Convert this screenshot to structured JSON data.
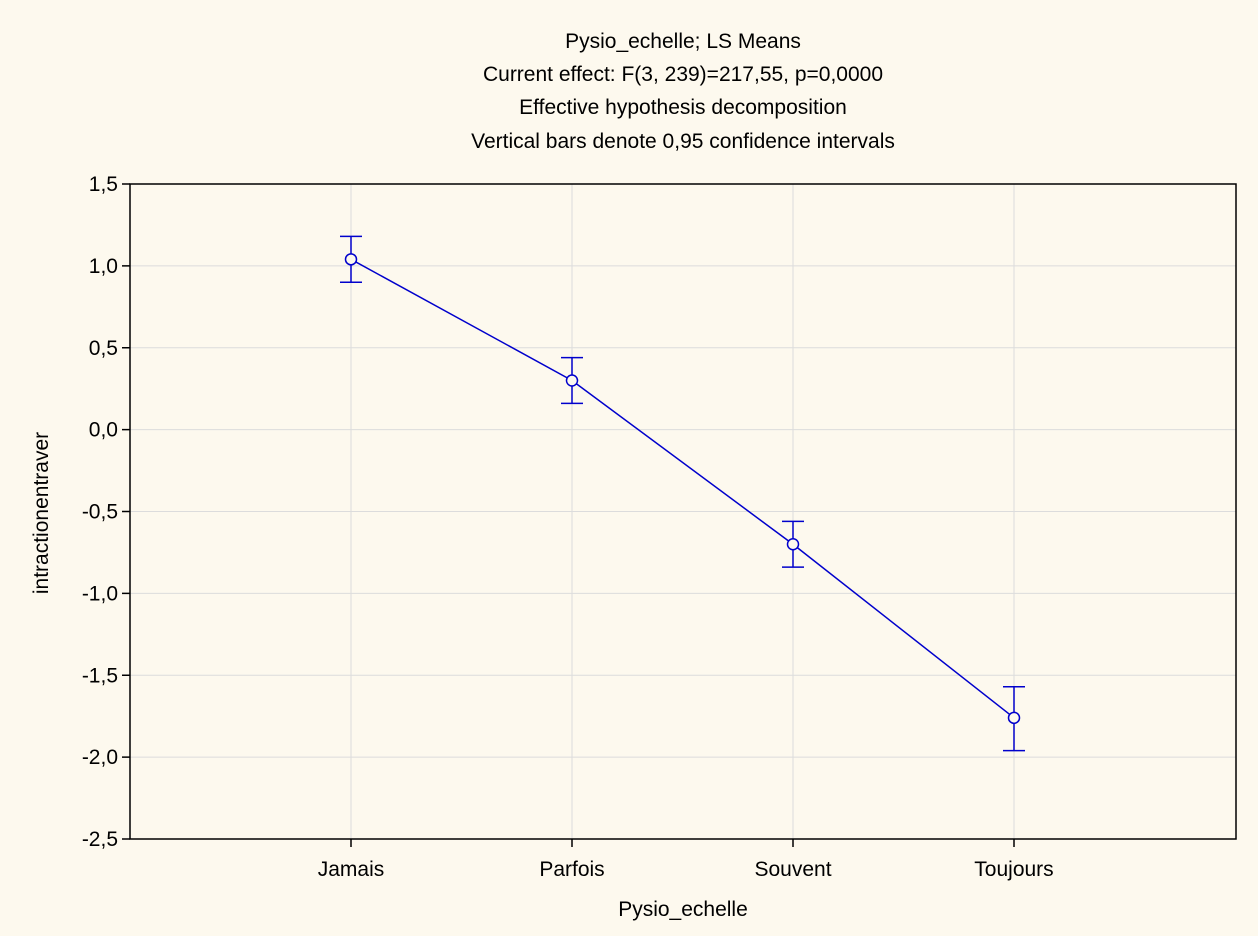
{
  "chart_data": {
    "type": "line",
    "title_lines": [
      "Pysio_echelle; LS Means",
      "Current effect: F(3, 239)=217,55, p=0,0000",
      "Effective hypothesis decomposition",
      "Vertical bars denote 0,95 confidence intervals"
    ],
    "xlabel": "Pysio_echelle",
    "ylabel": "intractionentraver",
    "categories": [
      "Jamais",
      "Parfois",
      "Souvent",
      "Toujours"
    ],
    "ylim": [
      -2.5,
      1.5
    ],
    "yticks": [
      1.5,
      1.0,
      0.5,
      0.0,
      -0.5,
      -1.0,
      -1.5,
      -2.0,
      -2.5
    ],
    "ytick_labels": [
      "1,5",
      "1,0",
      "0,5",
      "0,0",
      "-0,5",
      "-1,0",
      "-1,5",
      "-2,0",
      "-2,5"
    ],
    "grid": true,
    "series": [
      {
        "values": [
          1.04,
          0.3,
          -0.7,
          -1.76
        ],
        "ci_lower": [
          0.9,
          0.16,
          -0.84,
          -1.96
        ],
        "ci_upper": [
          1.18,
          0.44,
          -0.56,
          -1.57
        ],
        "color": "#0000cc"
      }
    ]
  }
}
